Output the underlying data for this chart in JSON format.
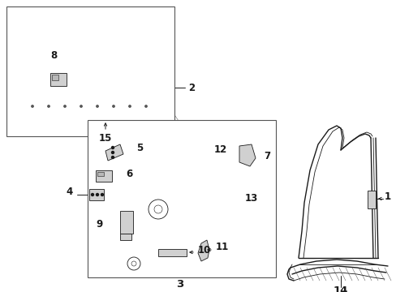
{
  "bg_color": "#ffffff",
  "line_color": "#1a1a1a",
  "label_color": "#000000",
  "label_font_size": 8.5,
  "fig_width": 4.89,
  "fig_height": 3.6,
  "dpi": 100
}
